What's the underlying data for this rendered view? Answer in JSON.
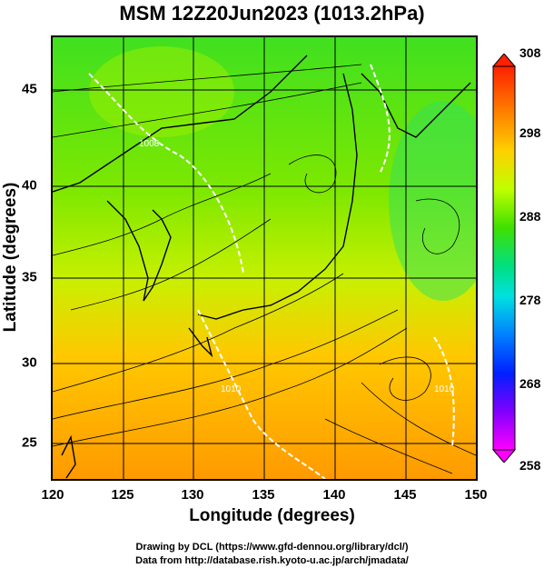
{
  "title": "MSM 12Z20Jun2023 (1013.2hPa)",
  "map": {
    "xlabel": "Longitude (degrees)",
    "ylabel": "Latitude  (degrees)",
    "x_ticks": [
      "120",
      "125",
      "130",
      "135",
      "140",
      "145",
      "150"
    ],
    "y_ticks": [
      "45",
      "40",
      "35",
      "30",
      "25"
    ],
    "contour_labels": [
      "1008",
      "1010",
      "1010"
    ],
    "region": "East Asia / Japan, 120E-150E, 22.5N-47.5N"
  },
  "colorbar": {
    "labels": [
      "308",
      "298",
      "288",
      "278",
      "268",
      "258"
    ],
    "colors": [
      "#ff0000",
      "#ff8000",
      "#ffd000",
      "#d8ff00",
      "#60e000",
      "#00e060",
      "#00e0e0",
      "#0080ff",
      "#0000ff",
      "#8000ff",
      "#ff00ff"
    ]
  },
  "credits": {
    "line1": "Drawing by DCL (https://www.gfd-dennou.org/library/dcl/)",
    "line2": "Data from http://database.rish.kyoto-u.ac.jp/arch/jmadata/"
  }
}
